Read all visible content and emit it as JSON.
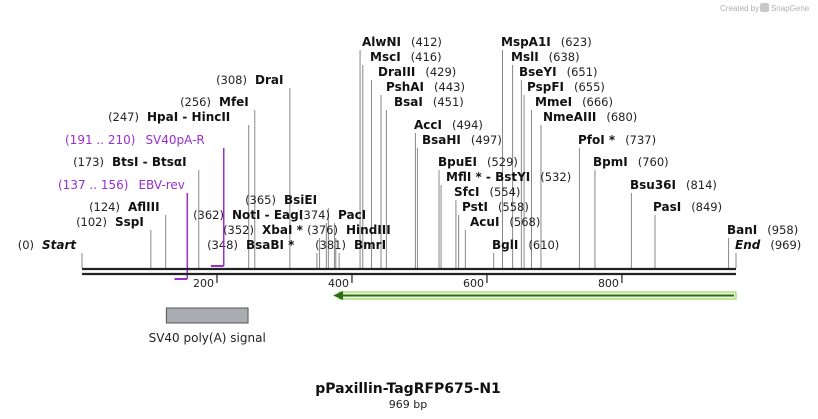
{
  "credit": {
    "label": "Created by",
    "brand": "SnapGene",
    "icon": "snapgene-logo-icon"
  },
  "sequence": {
    "name": "pPaxillin-TagRFP675-N1",
    "length_label": "969 bp",
    "length_bp": 969
  },
  "ruler": {
    "ticks": [
      200,
      400,
      600,
      800
    ]
  },
  "enzymes": [
    {
      "name": "Start",
      "pos": 0,
      "pos_text": "(0)",
      "kind": "end"
    },
    {
      "name": "SspI",
      "pos": 102,
      "pos_text": "(102)"
    },
    {
      "name": "AflIII",
      "pos": 124,
      "pos_text": "(124)"
    },
    {
      "name": "BtsI - BtsαI",
      "pos": 173,
      "pos_text": "(173)"
    },
    {
      "name": "HpaI - HincII",
      "pos": 247,
      "pos_text": "(247)"
    },
    {
      "name": "MfeI",
      "pos": 256,
      "pos_text": "(256)"
    },
    {
      "name": "DraI",
      "pos": 308,
      "pos_text": "(308)"
    },
    {
      "name": "BsaBI *",
      "pos": 348,
      "pos_text": "(348)"
    },
    {
      "name": "XbaI *",
      "pos": 352,
      "pos_text": "(352)"
    },
    {
      "name": "NotI - EagI",
      "pos": 362,
      "pos_text": "(362)"
    },
    {
      "name": "BsiEI",
      "pos": 365,
      "pos_text": "(365)"
    },
    {
      "name": "PacI",
      "pos": 374,
      "pos_text": "(374)"
    },
    {
      "name": "HindIII",
      "pos": 376,
      "pos_text": "(376)"
    },
    {
      "name": "BmrI",
      "pos": 381,
      "pos_text": "(381)"
    },
    {
      "name": "AlwNI",
      "pos": 412,
      "pos_text": "(412)"
    },
    {
      "name": "MscI",
      "pos": 416,
      "pos_text": "(416)"
    },
    {
      "name": "DraIII",
      "pos": 429,
      "pos_text": "(429)"
    },
    {
      "name": "PshAI",
      "pos": 443,
      "pos_text": "(443)"
    },
    {
      "name": "BsaI",
      "pos": 451,
      "pos_text": "(451)"
    },
    {
      "name": "AccI",
      "pos": 494,
      "pos_text": "(494)"
    },
    {
      "name": "BsaHI",
      "pos": 497,
      "pos_text": "(497)"
    },
    {
      "name": "BpuEI",
      "pos": 529,
      "pos_text": "(529)"
    },
    {
      "name": "MflI * - BstYI",
      "pos": 532,
      "pos_text": "(532)"
    },
    {
      "name": "SfcI",
      "pos": 554,
      "pos_text": "(554)"
    },
    {
      "name": "PstI",
      "pos": 558,
      "pos_text": "(558)"
    },
    {
      "name": "AcuI",
      "pos": 568,
      "pos_text": "(568)"
    },
    {
      "name": "BglI",
      "pos": 610,
      "pos_text": "(610)"
    },
    {
      "name": "MspA1I",
      "pos": 623,
      "pos_text": "(623)"
    },
    {
      "name": "MslI",
      "pos": 638,
      "pos_text": "(638)"
    },
    {
      "name": "BseYI",
      "pos": 651,
      "pos_text": "(651)"
    },
    {
      "name": "PspFI",
      "pos": 655,
      "pos_text": "(655)"
    },
    {
      "name": "MmeI",
      "pos": 666,
      "pos_text": "(666)"
    },
    {
      "name": "NmeAIII",
      "pos": 680,
      "pos_text": "(680)"
    },
    {
      "name": "PfoI *",
      "pos": 737,
      "pos_text": "(737)"
    },
    {
      "name": "BpmI",
      "pos": 760,
      "pos_text": "(760)"
    },
    {
      "name": "Bsu36I",
      "pos": 814,
      "pos_text": "(814)"
    },
    {
      "name": "PasI",
      "pos": 849,
      "pos_text": "(849)"
    },
    {
      "name": "BanI",
      "pos": 958,
      "pos_text": "(958)"
    },
    {
      "name": "End",
      "pos": 969,
      "pos_text": "(969)",
      "kind": "end"
    }
  ],
  "primers": [
    {
      "name": "SV40pA-R",
      "range_text": "(191 .. 210)",
      "start": 191,
      "end": 210
    },
    {
      "name": "EBV-rev",
      "range_text": "(137 .. 156)",
      "start": 137,
      "end": 156
    }
  ],
  "features": [
    {
      "name": "SV40 poly(A) signal",
      "start": 125,
      "end": 246,
      "color": "#a9adb2"
    },
    {
      "name": "",
      "start": 372,
      "end": 969,
      "strand": "reverse",
      "color": "#8fd14a"
    }
  ],
  "colors": {
    "primer": "#9a2fd0",
    "line": "#888888",
    "backbone": "#222222"
  }
}
